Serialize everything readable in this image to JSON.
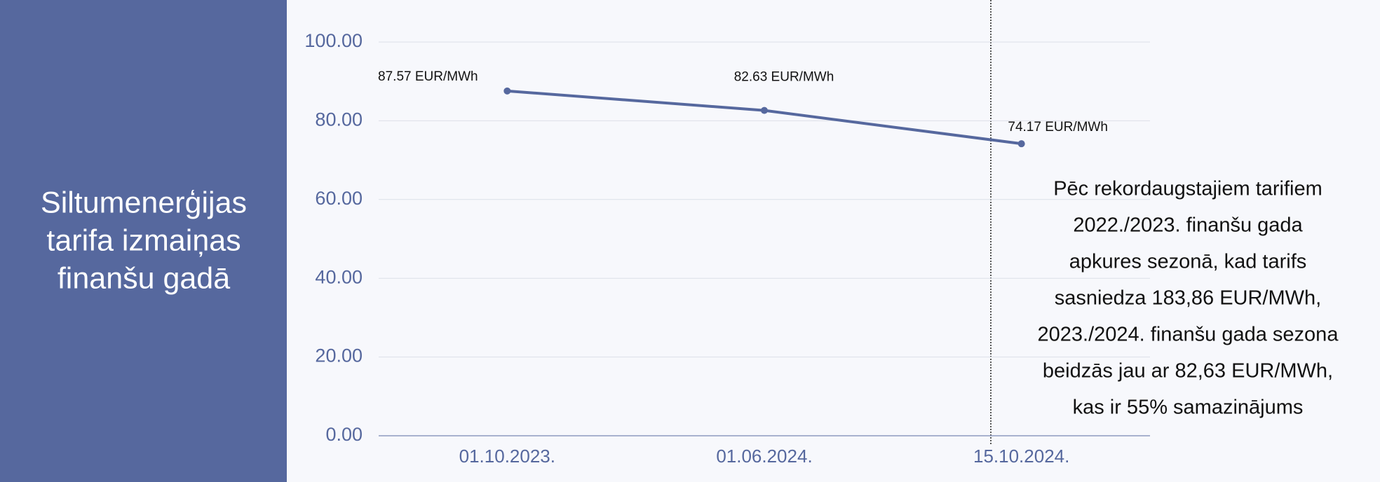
{
  "chart_data": {
    "type": "line",
    "title": [
      "Siltumenerģijas",
      "tarifa izmaiņas",
      "finanšu gadā"
    ],
    "categories": [
      "01.10.2023.",
      "01.06.2024.",
      "15.10.2024."
    ],
    "series": [
      {
        "color": "#56689e",
        "values": [
          87.57,
          82.63,
          74.17
        ],
        "value_labels": [
          "87.57 EUR/MWh",
          "82.63 EUR/MWh",
          "74.17 EUR/MWh"
        ]
      }
    ],
    "ylim": [
      0,
      100
    ],
    "yticks": [
      {
        "value": 0,
        "label": "0.00"
      },
      {
        "value": 20,
        "label": "20.00"
      },
      {
        "value": 40,
        "label": "40.00"
      },
      {
        "value": 60,
        "label": "60.00"
      },
      {
        "value": 80,
        "label": "80.00"
      },
      {
        "value": 100,
        "label": "100.00"
      }
    ],
    "grid": true,
    "annotation": [
      "Pēc rekordaugstajiem tarifiem",
      "2022./2023. finanšu gada",
      "apkures sezonā, kad tarifs",
      "sasniedza 183,86 EUR/MWh,",
      "2023./2024. finanšu gada sezona",
      "beidzās jau ar 82,63 EUR/MWh,",
      "kas ir 55% samazinājums"
    ]
  }
}
